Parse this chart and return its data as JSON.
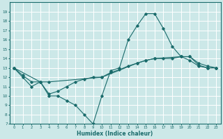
{
  "xlabel": "Humidex (Indice chaleur)",
  "bg_color": "#cce8e8",
  "line_color": "#1a6b6b",
  "grid_color": "#ffffff",
  "xlim": [
    -0.5,
    23.5
  ],
  "ylim": [
    7,
    20
  ],
  "xticks": [
    0,
    1,
    2,
    3,
    4,
    5,
    6,
    7,
    8,
    9,
    10,
    11,
    12,
    13,
    14,
    15,
    16,
    17,
    18,
    19,
    20,
    21,
    22,
    23
  ],
  "yticks": [
    7,
    8,
    9,
    10,
    11,
    12,
    13,
    14,
    15,
    16,
    17,
    18,
    19
  ],
  "line1_x": [
    0,
    1,
    2,
    3,
    4,
    5,
    6,
    7,
    8,
    9,
    10,
    11,
    12,
    13,
    14,
    15,
    16,
    17,
    18,
    19,
    20,
    21,
    22,
    23
  ],
  "line1_y": [
    13,
    12,
    11,
    11.5,
    10,
    10,
    9.5,
    9,
    8,
    7,
    10,
    12.7,
    13,
    16,
    17.5,
    18.8,
    18.8,
    17.2,
    15.3,
    14.2,
    13.8,
    13.2,
    13.0,
    13
  ],
  "line2_x": [
    0,
    1,
    2,
    3,
    4,
    5,
    6,
    7,
    8,
    9,
    10,
    11,
    12,
    13,
    14,
    15,
    16,
    17,
    18,
    19,
    20,
    21,
    22,
    23
  ],
  "line2_y": [
    13,
    12.2,
    11.5,
    11.5,
    10.2,
    10.5,
    11,
    11.5,
    11.8,
    12,
    12,
    12.5,
    12.8,
    13.2,
    13.5,
    13.8,
    14,
    14,
    14,
    14.2,
    14.2,
    13.5,
    13.2,
    13
  ],
  "line3_x": [
    0,
    3,
    4,
    10,
    14,
    15,
    16,
    19,
    20,
    21,
    22,
    23
  ],
  "line3_y": [
    13,
    11.5,
    11.5,
    12,
    13.5,
    13.8,
    14.0,
    14.2,
    14.2,
    13.3,
    13.0,
    13
  ]
}
